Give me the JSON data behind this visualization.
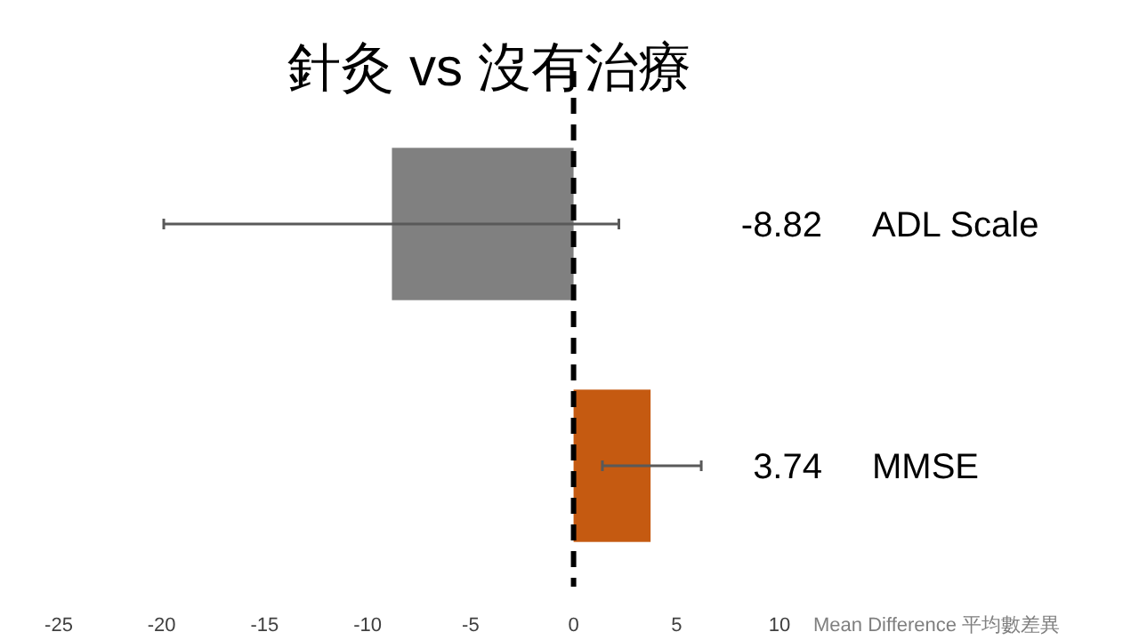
{
  "chart_data": {
    "type": "bar",
    "orientation": "horizontal",
    "title": "針灸 vs 沒有治療",
    "xlabel": "Mean Difference 平均數差異",
    "categories": [
      "ADL Scale",
      "MMSE"
    ],
    "values": [
      -8.82,
      3.74
    ],
    "colors": [
      "#808080",
      "#c55a11"
    ],
    "errors": [
      [
        -19.9,
        2.2
      ],
      [
        1.4,
        6.2
      ]
    ],
    "data_labels": true,
    "xlim": [
      -25,
      10
    ],
    "xticks": [
      -25,
      -20,
      -15,
      -10,
      -5,
      0,
      5,
      10
    ],
    "ref_lines": [
      {
        "axis": "x",
        "value": 0,
        "line_style": "dashed",
        "color": "#000000"
      }
    ]
  }
}
